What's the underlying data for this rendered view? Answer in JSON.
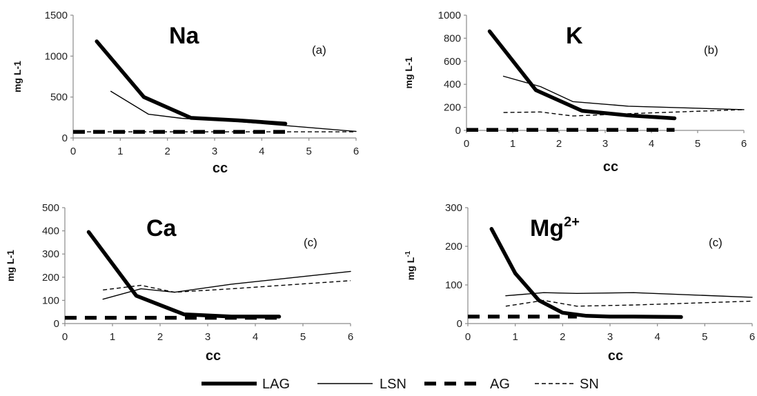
{
  "chart_data": [
    {
      "type": "line",
      "title": "Na",
      "tag": "(a)",
      "ylabel": "mg L-1",
      "ylabel_sup": "",
      "xlabel": "cc",
      "xlim": [
        0,
        6
      ],
      "ylim": [
        0,
        1500
      ],
      "xticks": [
        0,
        1,
        2,
        3,
        4,
        5,
        6
      ],
      "yticks": [
        0,
        500,
        1000,
        1500
      ],
      "series": [
        {
          "name": "LAG",
          "x": [
            0.5,
            1.5,
            2.5,
            3.5,
            4.5
          ],
          "y": [
            1180,
            500,
            245,
            215,
            175
          ]
        },
        {
          "name": "LSN",
          "x": [
            0.8,
            1.6,
            2.3,
            3.5,
            6
          ],
          "y": [
            570,
            290,
            240,
            200,
            80
          ]
        },
        {
          "name": "AG",
          "x": [
            0,
            4.5
          ],
          "y": [
            75,
            75
          ]
        },
        {
          "name": "SN",
          "x": [
            0,
            6
          ],
          "y": [
            75,
            75
          ]
        }
      ]
    },
    {
      "type": "line",
      "title": "K",
      "tag": "(b)",
      "ylabel": "mg L-1",
      "ylabel_sup": "",
      "xlabel": "cc",
      "xlim": [
        0,
        6
      ],
      "ylim": [
        0,
        1000
      ],
      "xticks": [
        0,
        1,
        2,
        3,
        4,
        5,
        6
      ],
      "yticks": [
        0,
        200,
        400,
        600,
        800,
        1000
      ],
      "series": [
        {
          "name": "LAG",
          "x": [
            0.5,
            1.5,
            2.5,
            3.5,
            4.5
          ],
          "y": [
            860,
            350,
            170,
            130,
            105
          ]
        },
        {
          "name": "LSN",
          "x": [
            0.8,
            1.6,
            2.3,
            3.5,
            6
          ],
          "y": [
            470,
            380,
            250,
            210,
            180
          ]
        },
        {
          "name": "AG",
          "x": [
            0,
            4.5
          ],
          "y": [
            5,
            5
          ]
        },
        {
          "name": "SN",
          "x": [
            0.8,
            1.6,
            2.3,
            3.5,
            6
          ],
          "y": [
            155,
            160,
            125,
            145,
            180
          ]
        }
      ]
    },
    {
      "type": "line",
      "title": "Ca",
      "tag": "(c)",
      "ylabel": "mg L-1",
      "ylabel_sup": "",
      "xlabel": "cc",
      "xlim": [
        0,
        6
      ],
      "ylim": [
        0,
        500
      ],
      "xticks": [
        0,
        1,
        2,
        3,
        4,
        5,
        6
      ],
      "yticks": [
        0,
        100,
        200,
        300,
        400,
        500
      ],
      "series": [
        {
          "name": "LAG",
          "x": [
            0.5,
            1.5,
            2.5,
            3.5,
            4.5
          ],
          "y": [
            395,
            120,
            40,
            30,
            30
          ]
        },
        {
          "name": "LSN",
          "x": [
            0.8,
            1.6,
            2.3,
            3.5,
            6
          ],
          "y": [
            105,
            150,
            135,
            170,
            225
          ]
        },
        {
          "name": "AG",
          "x": [
            0,
            4.5
          ],
          "y": [
            25,
            25
          ]
        },
        {
          "name": "SN",
          "x": [
            0.8,
            1.6,
            2.3,
            3.5,
            6
          ],
          "y": [
            145,
            165,
            135,
            150,
            185
          ]
        }
      ]
    },
    {
      "type": "line",
      "title": "Mg",
      "title_sup": "2+",
      "tag": "(c)",
      "ylabel": "mg L",
      "ylabel_sup": "-1",
      "xlabel": "cc",
      "xlim": [
        0,
        6
      ],
      "ylim": [
        0,
        300
      ],
      "xticks": [
        0,
        1,
        2,
        3,
        4,
        5,
        6
      ],
      "yticks": [
        0,
        100,
        200,
        300
      ],
      "series": [
        {
          "name": "LAG",
          "x": [
            0.5,
            1.0,
            1.5,
            2.0,
            2.5,
            3.0,
            3.5,
            4.5
          ],
          "y": [
            245,
            130,
            60,
            28,
            20,
            18,
            18,
            17
          ]
        },
        {
          "name": "LSN",
          "x": [
            0.8,
            1.6,
            2.3,
            3.5,
            6
          ],
          "y": [
            72,
            80,
            78,
            80,
            68
          ]
        },
        {
          "name": "AG",
          "x": [
            0,
            2.3
          ],
          "y": [
            18,
            18
          ]
        },
        {
          "name": "SN",
          "x": [
            0.8,
            1.6,
            2.3,
            3.5,
            6
          ],
          "y": [
            45,
            60,
            45,
            48,
            58
          ]
        }
      ]
    }
  ],
  "legend": {
    "position": "bottom",
    "items": [
      {
        "name": "LAG",
        "style": "thick-solid"
      },
      {
        "name": "LSN",
        "style": "thin-solid"
      },
      {
        "name": "AG",
        "style": "thick-dashed"
      },
      {
        "name": "SN",
        "style": "thin-dashed"
      }
    ]
  },
  "colors": {
    "line": "#000000",
    "axis": "#8a8a8a",
    "background": "#ffffff"
  }
}
